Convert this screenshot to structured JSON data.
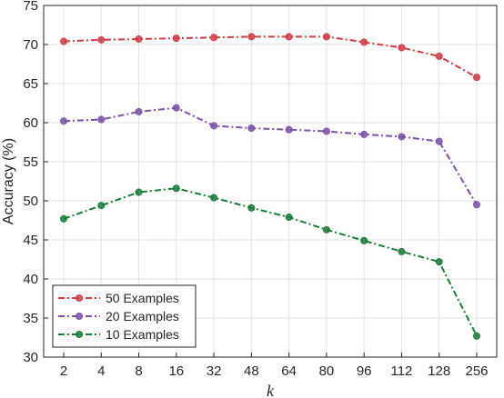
{
  "chart_data": {
    "type": "line",
    "xlabel": "k",
    "ylabel": "Accuracy (%)",
    "ylim": [
      30,
      75
    ],
    "yticks": [
      30,
      35,
      40,
      45,
      50,
      55,
      60,
      65,
      70,
      75
    ],
    "categories": [
      "2",
      "4",
      "8",
      "16",
      "32",
      "48",
      "64",
      "80",
      "96",
      "112",
      "128",
      "256"
    ],
    "grid": true,
    "legend_position": "bottom-left",
    "series": [
      {
        "name": "50 Examples",
        "color": "#d03c44",
        "values": [
          70.4,
          70.6,
          70.7,
          70.8,
          70.9,
          71.0,
          71.0,
          71.0,
          70.3,
          69.6,
          68.5,
          65.8
        ]
      },
      {
        "name": "20 Examples",
        "color": "#7a52a8",
        "values": [
          60.2,
          60.4,
          61.4,
          61.9,
          59.6,
          59.3,
          59.1,
          58.9,
          58.5,
          58.2,
          57.6,
          49.5
        ]
      },
      {
        "name": "10 Examples",
        "color": "#1b7a3c",
        "values": [
          47.7,
          49.4,
          51.1,
          51.6,
          50.4,
          49.1,
          47.9,
          46.3,
          44.9,
          43.5,
          42.2,
          32.7
        ]
      }
    ]
  }
}
